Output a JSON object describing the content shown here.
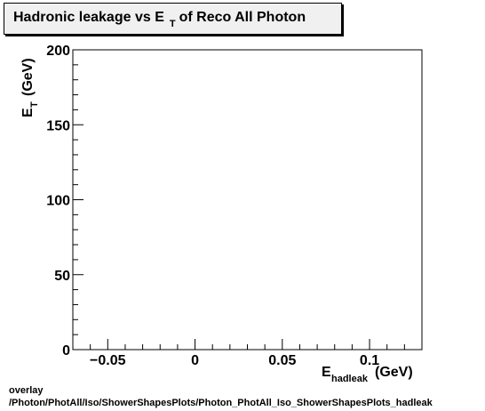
{
  "title": {
    "main": "Hadronic leakage vs E",
    "sub": "T",
    "rest": "of Reco All Photon"
  },
  "footer": {
    "line1": "overlay",
    "line2": "/Photon/PhotAll/Iso/ShowerShapesPlots/Photon_PhotAll_Iso_ShowerShapesPlots_hadleak"
  },
  "chart_data": {
    "type": "scatter",
    "title": "Hadronic leakage vs E_T of Reco All Photon",
    "xlabel": "E_hadleak (GeV)",
    "ylabel": "E_T (GeV)",
    "xlim": [
      -0.07,
      0.13
    ],
    "ylim": [
      0,
      200
    ],
    "x_ticks": [
      -0.05,
      0,
      0.05,
      0.1
    ],
    "x_tick_labels": [
      "−0.05",
      "0",
      "0.05",
      "0.1"
    ],
    "y_ticks": [
      0,
      50,
      100,
      150,
      200
    ],
    "y_tick_labels": [
      "0",
      "50",
      "100",
      "150",
      "200"
    ],
    "points": [],
    "grid": false
  }
}
